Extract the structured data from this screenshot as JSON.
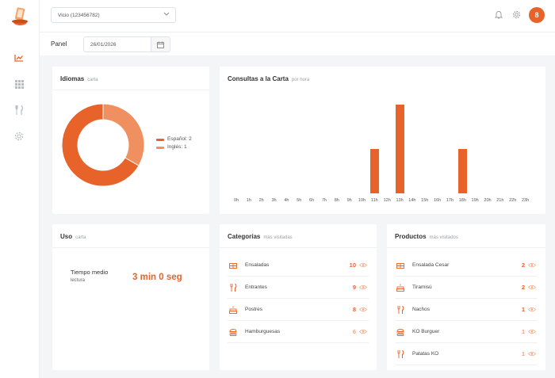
{
  "header": {
    "shop_selector": "Vicio (123456782)",
    "avatar_initial": "8"
  },
  "panel": {
    "label": "Panel",
    "date": "26/01/2026"
  },
  "languages": {
    "title": "Idiomas",
    "subtitle": "carta",
    "legend": [
      {
        "label": "Español: 2",
        "value": 2,
        "color": "#e8632a"
      },
      {
        "label": "Inglés: 1",
        "value": 1,
        "color": "#f09060"
      }
    ]
  },
  "hourly": {
    "title": "Consultas a la Carta",
    "subtitle": "por hora"
  },
  "chart_data": {
    "type": "bar",
    "categories": [
      "0h",
      "1h",
      "2h",
      "3h",
      "4h",
      "5h",
      "6h",
      "7h",
      "8h",
      "9h",
      "10h",
      "11h",
      "12h",
      "13h",
      "14h",
      "15h",
      "16h",
      "17h",
      "18h",
      "19h",
      "20h",
      "21h",
      "22h",
      "23h"
    ],
    "values": [
      0,
      0,
      0,
      0,
      0,
      0,
      0,
      0,
      0,
      0,
      0,
      1,
      0,
      2,
      0,
      0,
      0,
      0,
      1,
      0,
      0,
      0,
      0,
      0
    ],
    "title": "Consultas a la Carta",
    "ylim": [
      0,
      2
    ]
  },
  "usage": {
    "title": "Uso",
    "subtitle": "carta",
    "metric_label": "Tiempo medio",
    "metric_sub": "lectura",
    "metric_value": "3 min 0 seg"
  },
  "categories": {
    "title": "Categorías",
    "subtitle": "más visitadas",
    "items": [
      {
        "name": "Ensaladas",
        "count": "10",
        "icon": "salad-icon",
        "light": false
      },
      {
        "name": "Entrantes",
        "count": "9",
        "icon": "cutlery-icon",
        "light": false
      },
      {
        "name": "Postres",
        "count": "8",
        "icon": "cake-icon",
        "light": false
      },
      {
        "name": "Hamburguesas",
        "count": "6",
        "icon": "burger-icon",
        "light": true
      }
    ]
  },
  "products": {
    "title": "Productos",
    "subtitle": "más visitados",
    "items": [
      {
        "name": "Ensalada Cesar",
        "count": "2",
        "icon": "salad-icon",
        "light": false
      },
      {
        "name": "Tiramisú",
        "count": "2",
        "icon": "cake-icon",
        "light": false
      },
      {
        "name": "Nachos",
        "count": "1",
        "icon": "cutlery-icon",
        "light": false
      },
      {
        "name": "KO Burguer",
        "count": "1",
        "icon": "burger-icon",
        "light": true
      },
      {
        "name": "Patatas KO",
        "count": "1",
        "icon": "cutlery-icon",
        "light": true
      }
    ]
  },
  "colors": {
    "accent": "#e8632a",
    "accent_light": "#f09060"
  }
}
